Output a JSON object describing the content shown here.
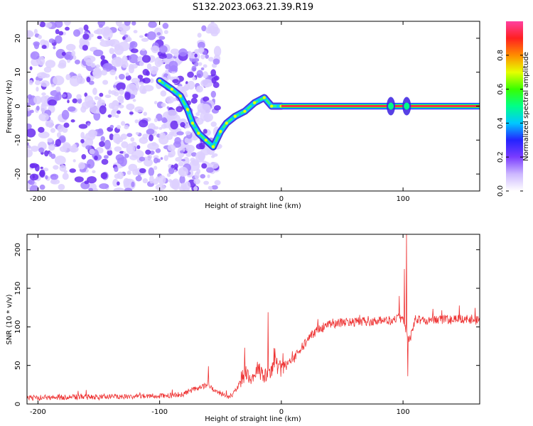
{
  "title": "S132.2023.063.21.39.R19",
  "chart_data": [
    {
      "type": "heatmap",
      "xlabel": "Height of straight line (km)",
      "ylabel": "Frequency (Hz)",
      "xlim": [
        -209,
        163
      ],
      "ylim": [
        -25,
        25
      ],
      "xticks": [
        -200,
        -100,
        0,
        100
      ],
      "yticks": [
        -20,
        -10,
        0,
        10,
        20
      ],
      "colorbar": {
        "label": "Normalized spectral amplitude",
        "range": [
          0,
          1
        ],
        "ticks": [
          "0.0",
          "0.2",
          "0.4",
          "0.6",
          "0.8"
        ],
        "colors": [
          "#ffffff",
          "#cdb8ff",
          "#7a3cff",
          "#2424ff",
          "#00c8ff",
          "#00ff88",
          "#38ff00",
          "#e6ff00",
          "#ff8c00",
          "#ff2020",
          "#ff40a0"
        ]
      },
      "features": {
        "noise_region_km": [
          -209,
          -52
        ],
        "dispersive_track": [
          {
            "x": -100,
            "y": 7.5
          },
          {
            "x": -90,
            "y": 5
          },
          {
            "x": -83,
            "y": 3
          },
          {
            "x": -77,
            "y": -1
          },
          {
            "x": -73,
            "y": -5
          },
          {
            "x": -68,
            "y": -8
          },
          {
            "x": -62,
            "y": -10
          },
          {
            "x": -56,
            "y": -12
          },
          {
            "x": -50,
            "y": -7.5
          },
          {
            "x": -45,
            "y": -5
          },
          {
            "x": -38,
            "y": -3
          },
          {
            "x": -30,
            "y": -1.5
          },
          {
            "x": -22,
            "y": 1
          },
          {
            "x": -14,
            "y": 2.5
          },
          {
            "x": -8,
            "y": 0
          },
          {
            "x": 0,
            "y": 0
          }
        ],
        "steady_line": {
          "y": 0,
          "x_from": 0,
          "x_to": 163
        },
        "bursts_km": [
          90,
          103
        ]
      }
    },
    {
      "type": "line",
      "xlabel": "Height of straight line (km)",
      "ylabel": "SNR (10 * v/v)",
      "xlim": [
        -209,
        163
      ],
      "ylim": [
        0,
        220
      ],
      "xticks": [
        -200,
        -100,
        0,
        100
      ],
      "yticks": [
        0,
        50,
        100,
        150,
        200
      ],
      "series": [
        {
          "name": "SNR",
          "color": "#ee3333",
          "x": [
            -209,
            -180,
            -150,
            -120,
            -90,
            -80,
            -70,
            -60,
            -55,
            -50,
            -45,
            -40,
            -35,
            -30,
            -25,
            -20,
            -15,
            -10,
            -5,
            0,
            5,
            10,
            15,
            20,
            25,
            30,
            35,
            40,
            45,
            50,
            60,
            70,
            80,
            90,
            95,
            100,
            103,
            105,
            110,
            120,
            130,
            140,
            150,
            163
          ],
          "y": [
            8,
            9,
            9,
            10,
            11,
            13,
            20,
            25,
            18,
            13,
            10,
            11,
            25,
            40,
            32,
            45,
            38,
            42,
            52,
            45,
            52,
            58,
            68,
            80,
            90,
            95,
            100,
            103,
            104,
            105,
            106,
            107,
            108,
            108,
            112,
            108,
            95,
            80,
            110,
            108,
            110,
            109,
            110,
            108
          ],
          "spikes": [
            {
              "x": -60,
              "y": 49
            },
            {
              "x": -30,
              "y": 73
            },
            {
              "x": -11,
              "y": 119
            },
            {
              "x": 30,
              "y": 110
            },
            {
              "x": 97,
              "y": 140
            },
            {
              "x": 101,
              "y": 175
            },
            {
              "x": 103,
              "y": 222
            },
            {
              "x": 104,
              "y": 36
            }
          ]
        }
      ]
    }
  ]
}
